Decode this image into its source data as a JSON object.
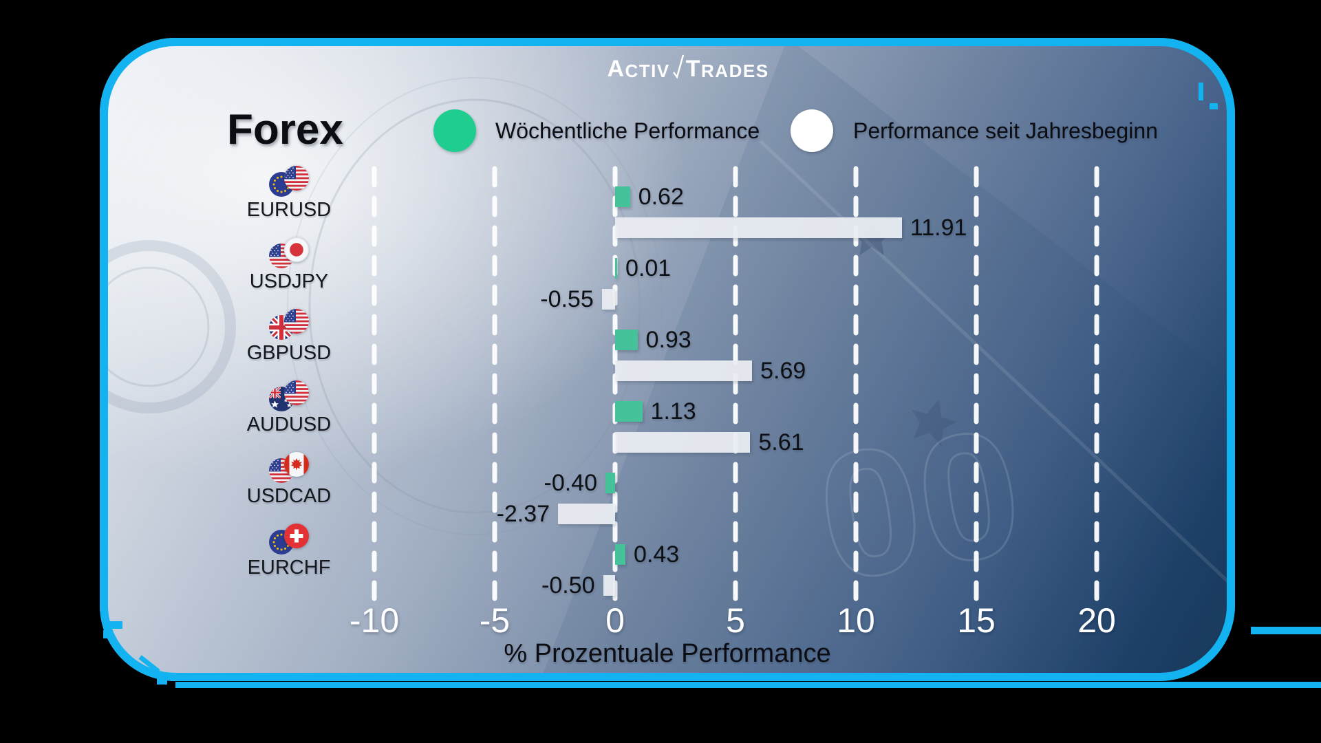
{
  "brand": {
    "logo_name": "ActivTrades",
    "logo_part1_initial": "A",
    "logo_part1_rest": "CTIV",
    "logo_part2_initial": "T",
    "logo_part2_rest": "RADES"
  },
  "title": "Forex",
  "legend": [
    {
      "label": "Wöchentliche Performance",
      "color": "#1FCE8F"
    },
    {
      "label": "Performance seit Jahresbeginn",
      "color": "#FFFFFF"
    }
  ],
  "axis": {
    "ticks": [
      "-10",
      "-5",
      "0",
      "5",
      "10",
      "15",
      "20"
    ],
    "title": "% Prozentuale Performance"
  },
  "rows": [
    {
      "pair": "EURUSD",
      "flags": [
        "eur-flag",
        "usd-flag"
      ],
      "weekly_label": "0.62",
      "ytd_label": "11.91"
    },
    {
      "pair": "USDJPY",
      "flags": [
        "usd-flag",
        "jpy-flag"
      ],
      "weekly_label": "0.01",
      "ytd_label": "-0.55"
    },
    {
      "pair": "GBPUSD",
      "flags": [
        "gbp-flag",
        "usd-flag"
      ],
      "weekly_label": "0.93",
      "ytd_label": "5.69"
    },
    {
      "pair": "AUDUSD",
      "flags": [
        "aud-flag",
        "usd-flag"
      ],
      "weekly_label": "1.13",
      "ytd_label": "5.61"
    },
    {
      "pair": "USDCAD",
      "flags": [
        "usd-flag",
        "cad-flag"
      ],
      "weekly_label": "-0.40",
      "ytd_label": "-2.37"
    },
    {
      "pair": "EURCHF",
      "flags": [
        "eur-flag",
        "chf-flag"
      ],
      "weekly_label": "0.43",
      "ytd_label": "-0.50"
    }
  ],
  "chart_data": {
    "type": "bar",
    "orientation": "horizontal",
    "categories": [
      "EURUSD",
      "USDJPY",
      "GBPUSD",
      "AUDUSD",
      "USDCAD",
      "EURCHF"
    ],
    "series": [
      {
        "name": "Wöchentliche Performance",
        "color": "#46C29B",
        "values": [
          0.62,
          0.01,
          0.93,
          1.13,
          -0.4,
          0.43
        ]
      },
      {
        "name": "Performance seit Jahresbeginn",
        "color": "#E9ECF1",
        "values": [
          11.91,
          -0.55,
          5.69,
          5.61,
          -2.37,
          -0.5
        ]
      }
    ],
    "xlabel": "% Prozentuale Performance",
    "xticks": [
      -10,
      -5,
      0,
      5,
      10,
      15,
      20
    ],
    "xlim": [
      -11.6,
      22.6
    ],
    "grid": "vertical-dashed-white",
    "legend_position": "top"
  },
  "colors": {
    "card_border": "#13B3F1",
    "background_outer": "#000000",
    "bar_weekly": "#46C29B",
    "bar_ytd": "#E9ECF1",
    "legend_weekly_dot": "#1FCE8F",
    "legend_ytd_dot": "#FFFFFF",
    "tick_label": "#FFFFFF",
    "value_label": "#0D1014"
  },
  "decor": {
    "euro_watermark_digits": "00"
  }
}
